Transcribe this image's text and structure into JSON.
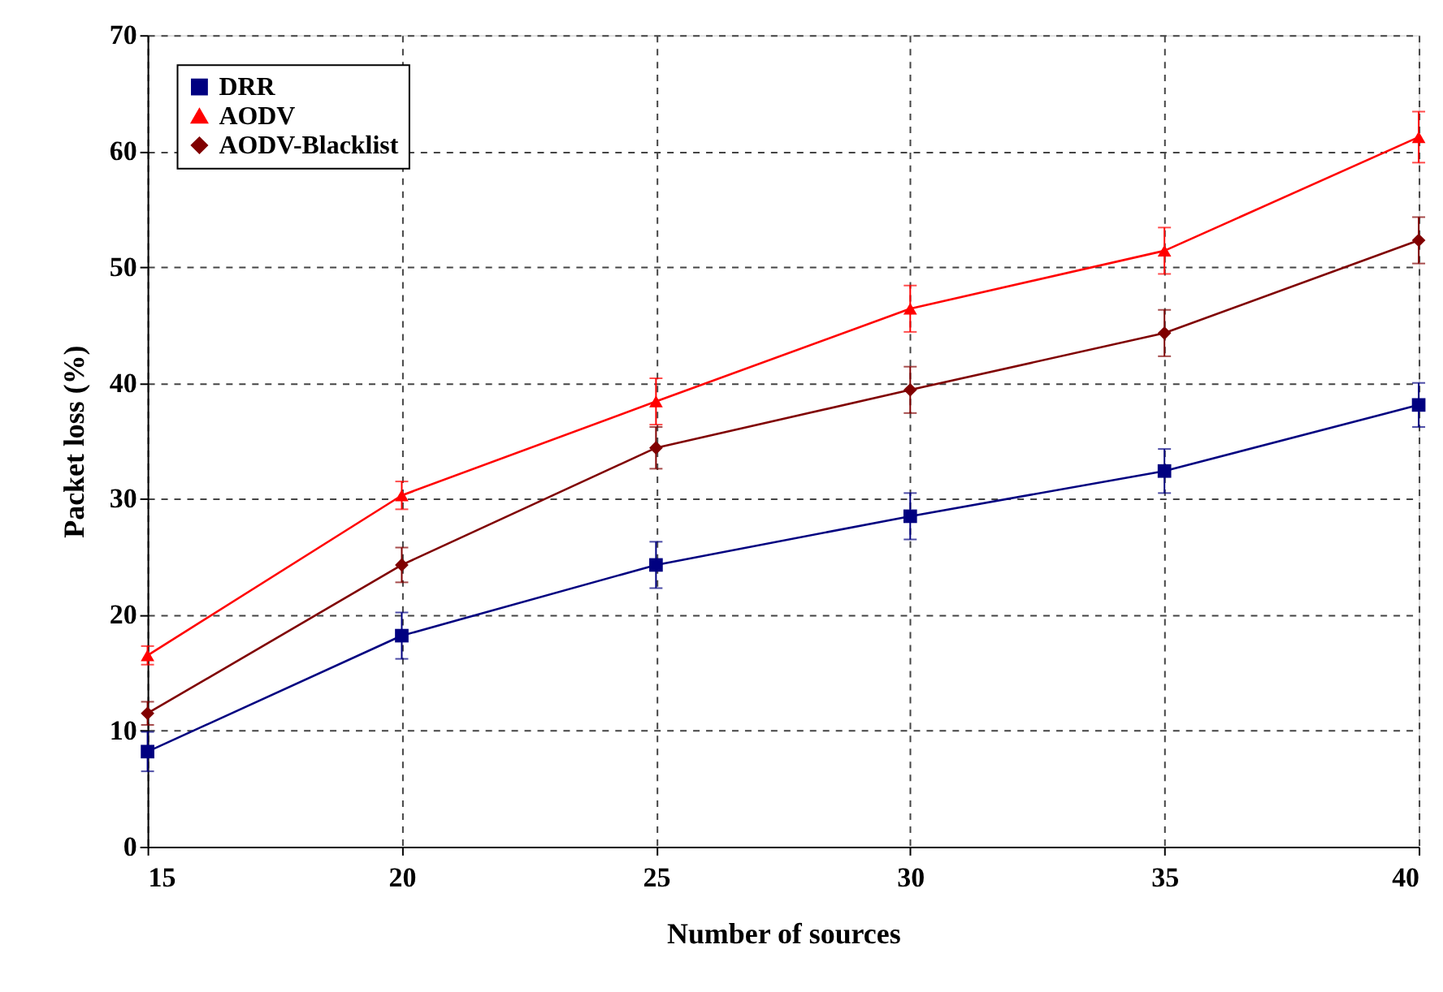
{
  "chart_data": {
    "type": "line",
    "xlabel": "Number of sources",
    "ylabel": "Packet loss (%)",
    "x": [
      15,
      20,
      25,
      30,
      35,
      40
    ],
    "series": [
      {
        "name": "DRR",
        "color": "#000080",
        "marker": "square",
        "values": [
          8.2,
          18.2,
          24.3,
          28.5,
          32.4,
          38.1
        ],
        "errors": [
          1.7,
          2,
          2,
          2,
          1.9,
          1.9
        ]
      },
      {
        "name": "AODV",
        "color": "#ff0000",
        "marker": "triangle",
        "values": [
          16.5,
          30.3,
          38.4,
          46.4,
          51.4,
          61.2
        ],
        "errors": [
          0.8,
          1.2,
          2,
          2,
          2,
          2.2
        ]
      },
      {
        "name": "AODV-Blacklist",
        "color": "#800000",
        "marker": "diamond",
        "values": [
          11.5,
          24.3,
          34.4,
          39.4,
          44.3,
          52.3
        ],
        "errors": [
          1,
          1.5,
          1.8,
          2,
          2,
          2
        ]
      }
    ],
    "xlim": [
      15,
      40
    ],
    "xticks": [
      15,
      20,
      25,
      30,
      35,
      40
    ],
    "ylim": [
      0,
      70
    ],
    "yticks": [
      0,
      10,
      20,
      30,
      40,
      50,
      60,
      70
    ],
    "grid": true,
    "legend": "top left",
    "line_style": "solid"
  }
}
